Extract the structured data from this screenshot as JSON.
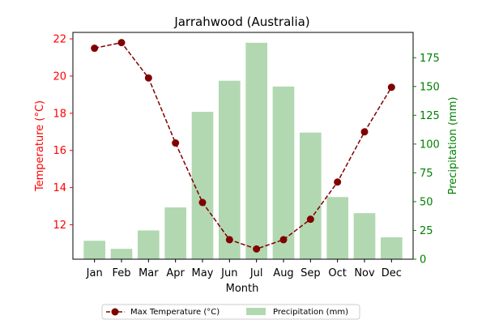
{
  "chart_data": {
    "type": "bar+line",
    "title": "Jarrahwood (Australia)",
    "xlabel": "Month",
    "categories": [
      "Jan",
      "Feb",
      "Mar",
      "Apr",
      "May",
      "Jun",
      "Jul",
      "Aug",
      "Sep",
      "Oct",
      "Nov",
      "Dec"
    ],
    "series": [
      {
        "name": "Max Temperature (°C)",
        "kind": "line",
        "axis": "left",
        "color": "#800000",
        "values": [
          21.5,
          21.8,
          19.9,
          16.4,
          13.2,
          11.2,
          10.7,
          11.2,
          12.3,
          14.3,
          17.0,
          19.4
        ]
      },
      {
        "name": "Precipitation (mm)",
        "kind": "bar",
        "axis": "right",
        "color": "#b2d8b2",
        "values": [
          16,
          9,
          25,
          45,
          128,
          155,
          188,
          150,
          110,
          54,
          40,
          19
        ]
      }
    ],
    "left_axis": {
      "label": "Temperature (°C)",
      "color": "#ff0000",
      "ylim": [
        10.15,
        22.35
      ],
      "ticks": [
        12,
        14,
        16,
        18,
        20,
        22
      ],
      "tick_labels": [
        "12",
        "14",
        "16",
        "18",
        "20",
        "22"
      ]
    },
    "right_axis": {
      "label": "Precipitation (mm)",
      "color": "#008000",
      "ylim": [
        0,
        197
      ],
      "ticks": [
        0,
        25,
        50,
        75,
        100,
        125,
        150,
        175
      ],
      "tick_labels": [
        "0",
        "25",
        "50",
        "75",
        "100",
        "125",
        "150",
        "175"
      ]
    },
    "grid": false,
    "legend": "bottom-center"
  }
}
